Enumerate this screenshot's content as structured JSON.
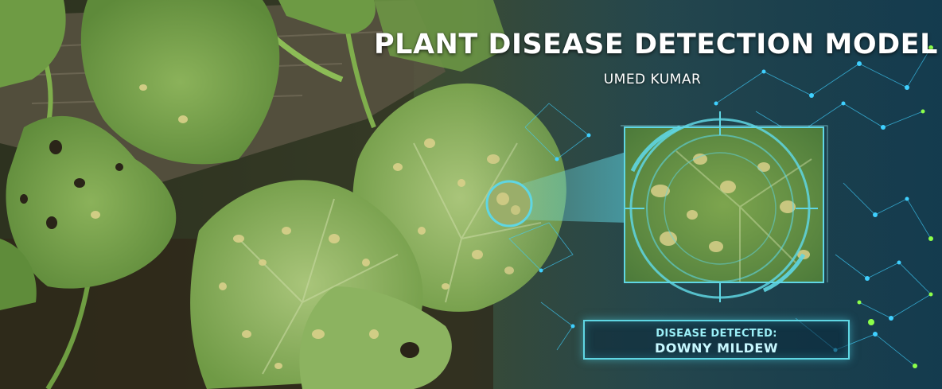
{
  "header": {
    "title": "PLANT DISEASE DETECTION MODEL",
    "author": "UMED KUMAR"
  },
  "detection": {
    "label": "DISEASE DETECTED:",
    "result": "DOWNY MILDEW"
  },
  "colors": {
    "accent": "#5fd6e3",
    "network_node": "#3fd0ff",
    "network_node_green": "#8cff4a",
    "leaf_green": "#6f9a45",
    "lesion_yellow": "#d9d08a"
  },
  "icons": [
    "leaf-photo",
    "magnifier-scope",
    "reticle-icon",
    "neural-network-graphic"
  ]
}
